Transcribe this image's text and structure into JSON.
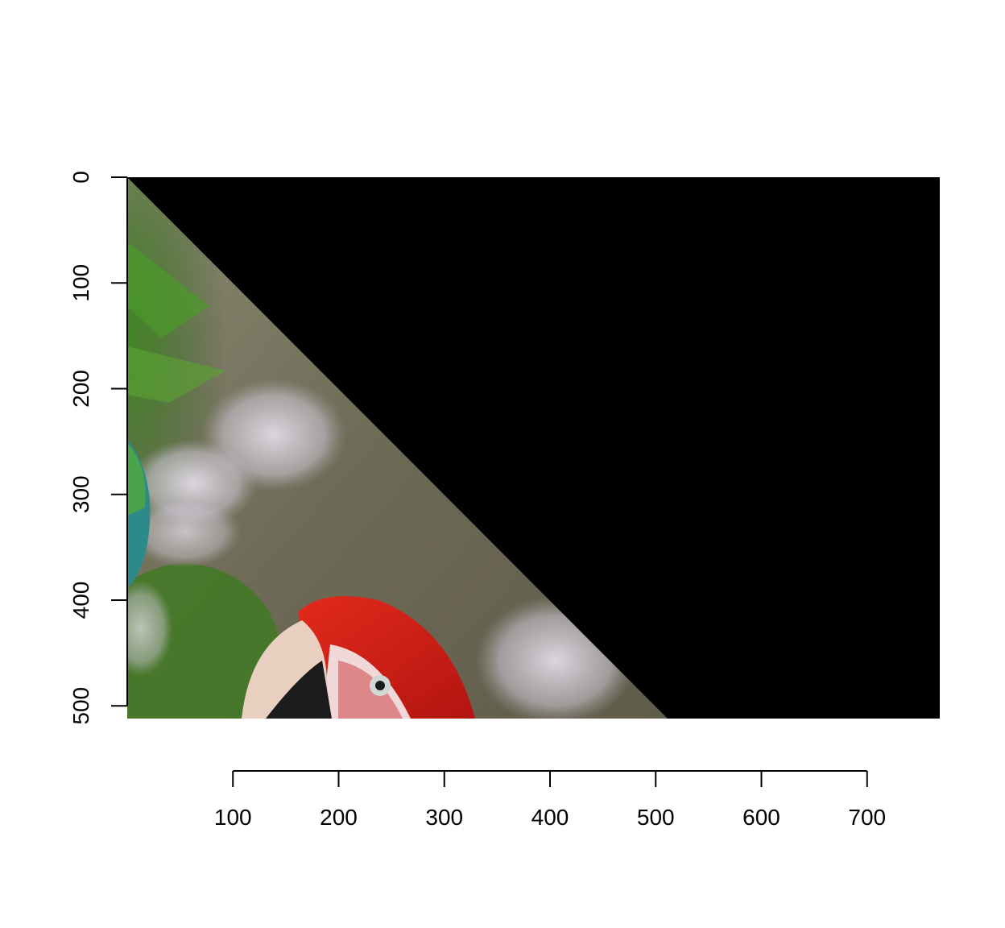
{
  "chart_data": {
    "type": "other",
    "title": "",
    "xlabel": "",
    "ylabel": "",
    "x_ticks": [
      100,
      200,
      300,
      400,
      500,
      600,
      700
    ],
    "y_ticks": [
      0,
      100,
      200,
      300,
      400,
      500
    ],
    "xlim": [
      0,
      768
    ],
    "ylim": [
      0,
      512
    ],
    "y_reversed": true,
    "grid": false,
    "image": {
      "description_tokens": [
        "macaw-parrot-photo",
        "green-foliage",
        "blurred-background"
      ],
      "masked_region": "upper-right triangle above the diagonal from (0,0) to (512,512)",
      "mask_color": "#000000"
    }
  }
}
